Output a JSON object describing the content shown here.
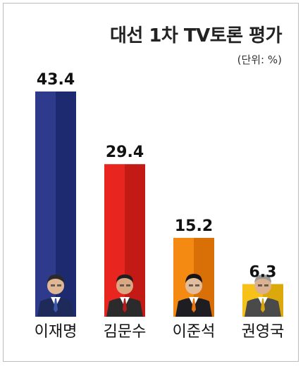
{
  "chart_data": {
    "type": "bar",
    "title": "대선 1차 TV토론 평가",
    "unit_label": "(단위: %)",
    "categories": [
      "이재명",
      "김문수",
      "이준석",
      "권영국"
    ],
    "values": [
      43.4,
      29.4,
      15.2,
      6.3
    ],
    "value_labels": [
      "43.4",
      "29.4",
      "15.2",
      "6.3"
    ],
    "ylim": [
      0,
      43.4
    ],
    "grid": false,
    "colors": [
      {
        "light": "#2e3a8c",
        "dark": "#1e2a70"
      },
      {
        "light": "#e8251e",
        "dark": "#c31a15"
      },
      {
        "light": "#f58a12",
        "dark": "#d86f07"
      },
      {
        "light": "#f6c21a",
        "dark": "#dca90c"
      }
    ]
  }
}
